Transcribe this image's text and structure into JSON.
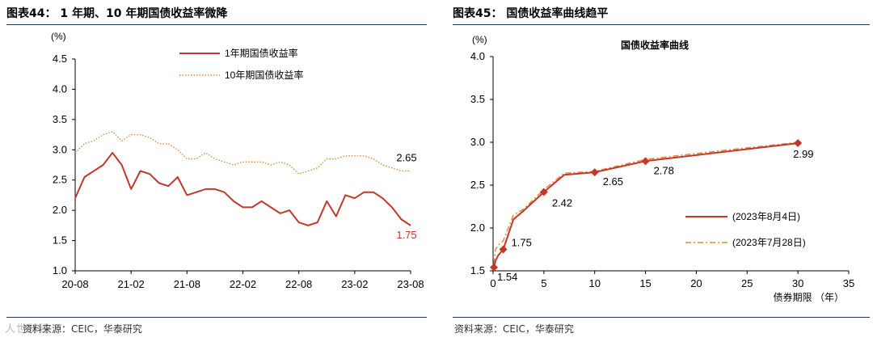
{
  "left_panel": {
    "title": "图表44： 1 年期、10 年期国债收益率微降",
    "source": "资料来源：CEIC，华泰研究",
    "watermark": "人世财经"
  },
  "right_panel": {
    "title": "图表45： 国债收益率曲线趋平",
    "source": "资料来源：CEIC，华泰研究"
  },
  "chart_data": [
    {
      "type": "line",
      "title": "",
      "xlabel": "",
      "ylabel": "(%)",
      "ylim": [
        1.0,
        4.5
      ],
      "yticks": [
        "1.0",
        "1.5",
        "2.0",
        "2.5",
        "3.0",
        "3.5",
        "4.0",
        "4.5"
      ],
      "x_tick_labels": [
        "20-08",
        "21-02",
        "21-08",
        "22-02",
        "22-08",
        "23-02",
        "23-08"
      ],
      "x_range": [
        "2020-08",
        "2023-08"
      ],
      "grid": false,
      "legend_position": "top",
      "series": [
        {
          "name": "1年期国债收益率",
          "style": "solid",
          "color": "#c0392b",
          "end_label": "1.75",
          "x": [
            "2020-08",
            "2020-09",
            "2020-10",
            "2020-11",
            "2020-12",
            "2021-01",
            "2021-02",
            "2021-03",
            "2021-04",
            "2021-05",
            "2021-06",
            "2021-07",
            "2021-08",
            "2021-09",
            "2021-10",
            "2021-11",
            "2021-12",
            "2022-01",
            "2022-02",
            "2022-03",
            "2022-04",
            "2022-05",
            "2022-06",
            "2022-07",
            "2022-08",
            "2022-09",
            "2022-10",
            "2022-11",
            "2022-12",
            "2023-01",
            "2023-02",
            "2023-03",
            "2023-04",
            "2023-05",
            "2023-06",
            "2023-07",
            "2023-08"
          ],
          "values": [
            2.2,
            2.55,
            2.65,
            2.75,
            2.95,
            2.75,
            2.35,
            2.65,
            2.6,
            2.45,
            2.4,
            2.55,
            2.25,
            2.3,
            2.35,
            2.35,
            2.3,
            2.15,
            2.05,
            2.05,
            2.15,
            2.05,
            1.95,
            2.0,
            1.8,
            1.75,
            1.8,
            2.15,
            1.9,
            2.25,
            2.2,
            2.3,
            2.3,
            2.2,
            2.05,
            1.85,
            1.75
          ]
        },
        {
          "name": "10年期国债收益率",
          "style": "dotted",
          "color": "#e08a3c",
          "end_label": "2.65",
          "x": [
            "2020-08",
            "2020-09",
            "2020-10",
            "2020-11",
            "2020-12",
            "2021-01",
            "2021-02",
            "2021-03",
            "2021-04",
            "2021-05",
            "2021-06",
            "2021-07",
            "2021-08",
            "2021-09",
            "2021-10",
            "2021-11",
            "2021-12",
            "2022-01",
            "2022-02",
            "2022-03",
            "2022-04",
            "2022-05",
            "2022-06",
            "2022-07",
            "2022-08",
            "2022-09",
            "2022-10",
            "2022-11",
            "2022-12",
            "2023-01",
            "2023-02",
            "2023-03",
            "2023-04",
            "2023-05",
            "2023-06",
            "2023-07",
            "2023-08"
          ],
          "values": [
            2.95,
            3.1,
            3.15,
            3.25,
            3.3,
            3.15,
            3.25,
            3.25,
            3.2,
            3.1,
            3.1,
            3.0,
            2.85,
            2.85,
            2.95,
            2.85,
            2.8,
            2.75,
            2.8,
            2.8,
            2.8,
            2.75,
            2.8,
            2.75,
            2.6,
            2.65,
            2.7,
            2.85,
            2.85,
            2.9,
            2.9,
            2.9,
            2.85,
            2.75,
            2.7,
            2.65,
            2.65
          ]
        }
      ]
    },
    {
      "type": "line",
      "title": "国债收益率曲线",
      "xlabel": "债券期限 （年）",
      "ylabel": "(%)",
      "xlim": [
        0,
        35
      ],
      "ylim": [
        1.5,
        4.0
      ],
      "xticks": [
        0,
        5,
        10,
        15,
        20,
        25,
        30,
        35
      ],
      "yticks": [
        "1.5",
        "2.0",
        "2.5",
        "3.0",
        "3.5",
        "4.0"
      ],
      "grid": false,
      "legend_position": "bottom-right",
      "series": [
        {
          "name": "(2023年8月4日)",
          "style": "solid",
          "color": "#c0392b",
          "x": [
            0.08,
            0.25,
            0.5,
            1,
            2,
            3,
            5,
            7,
            10,
            15,
            20,
            30
          ],
          "values": [
            1.54,
            1.62,
            1.68,
            1.75,
            2.1,
            2.2,
            2.42,
            2.62,
            2.65,
            2.78,
            2.85,
            2.99
          ]
        },
        {
          "name": "(2023年7月28日)",
          "style": "dashdot",
          "color": "#e08a3c",
          "x": [
            0.08,
            0.25,
            0.5,
            1,
            2,
            3,
            5,
            7,
            10,
            15,
            20,
            30
          ],
          "values": [
            1.58,
            1.75,
            1.8,
            1.85,
            2.15,
            2.22,
            2.45,
            2.64,
            2.66,
            2.8,
            2.87,
            3.0
          ]
        }
      ],
      "markers": [
        {
          "x": 0.08,
          "y": 1.54,
          "label": "1.54"
        },
        {
          "x": 1,
          "y": 1.75,
          "label": "1.75"
        },
        {
          "x": 5,
          "y": 2.42,
          "label": "2.42"
        },
        {
          "x": 10,
          "y": 2.65,
          "label": "2.65"
        },
        {
          "x": 15,
          "y": 2.78,
          "label": "2.78"
        },
        {
          "x": 30,
          "y": 2.99,
          "label": "2.99"
        }
      ]
    }
  ]
}
